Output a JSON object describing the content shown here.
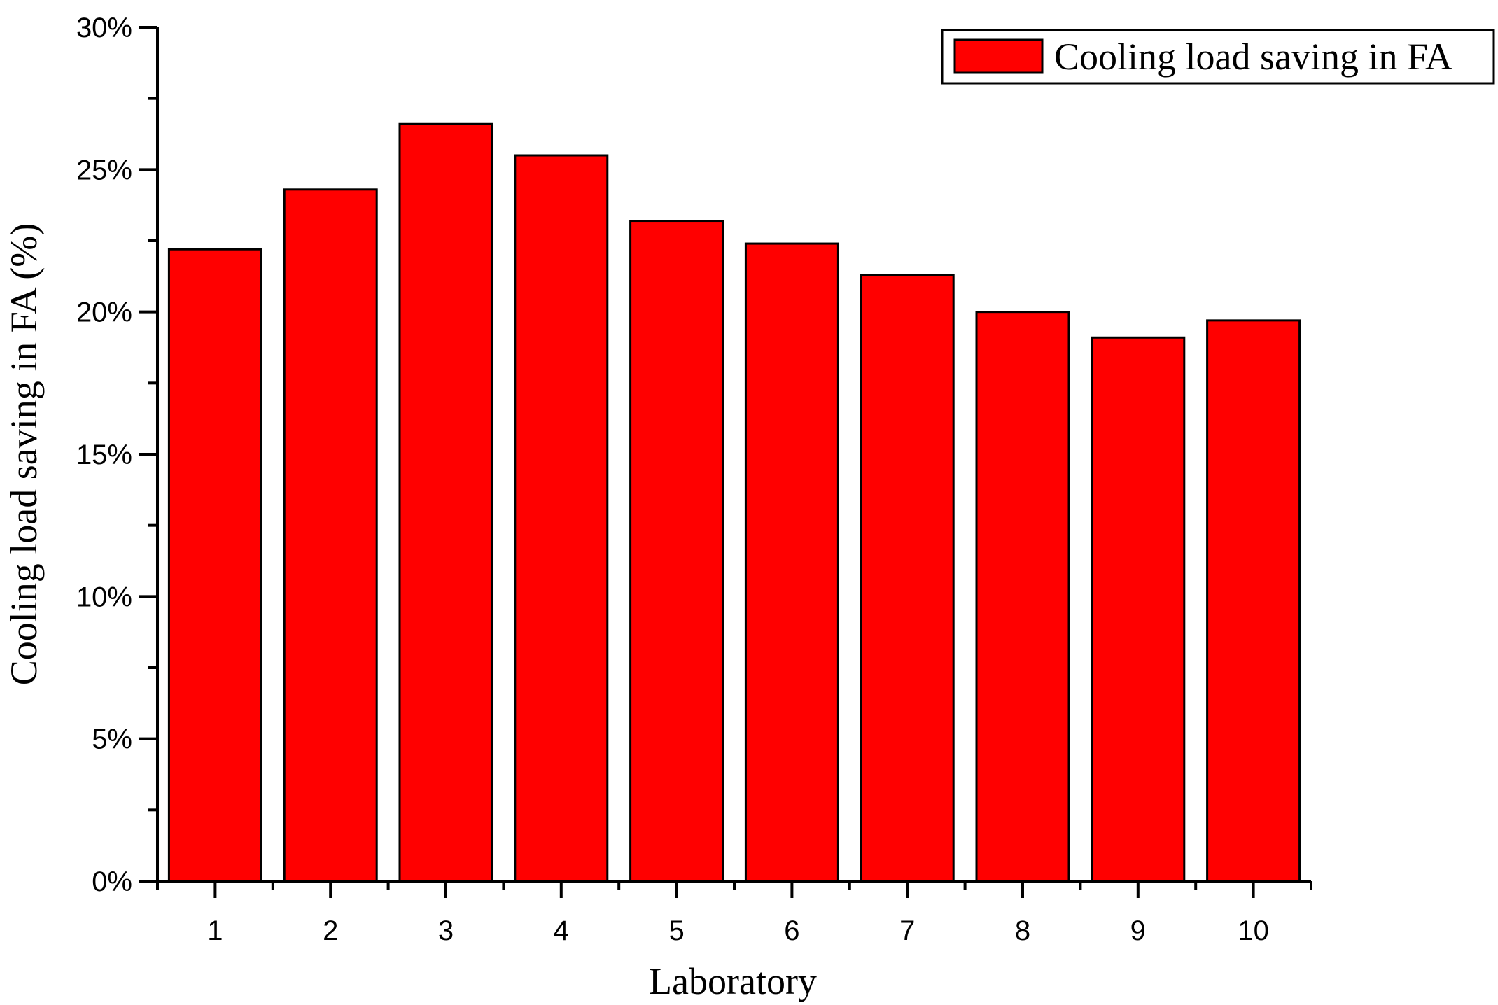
{
  "chart_data": {
    "type": "bar",
    "categories": [
      "1",
      "2",
      "3",
      "4",
      "5",
      "6",
      "7",
      "8",
      "9",
      "10"
    ],
    "series": [
      {
        "name": "Cooling load saving in FA",
        "values": [
          0.222,
          0.243,
          0.266,
          0.255,
          0.232,
          0.224,
          0.213,
          0.2,
          0.191,
          0.197
        ]
      }
    ],
    "xlabel": "Laboratory",
    "ylabel": "Cooling load saving in FA (%)",
    "ylim": [
      0,
      0.3
    ],
    "yticks": [
      0,
      0.05,
      0.1,
      0.15,
      0.2,
      0.25,
      0.3
    ],
    "ytick_labels": [
      "0%",
      "5%",
      "10%",
      "15%",
      "20%",
      "25%",
      "30%"
    ],
    "bar_color": "#ff0000",
    "legend": {
      "entries": [
        "Cooling load saving in FA"
      ],
      "placement": "top-right"
    },
    "grid": false
  }
}
